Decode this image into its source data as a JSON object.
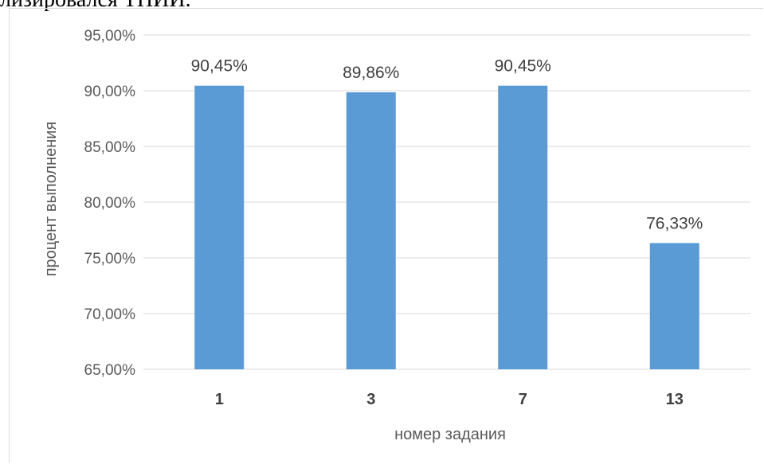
{
  "header_text": "лизировался ТНИИ.",
  "chart_data": {
    "type": "bar",
    "categories": [
      "1",
      "3",
      "7",
      "13"
    ],
    "values": [
      90.45,
      89.86,
      90.45,
      76.33
    ],
    "data_labels": [
      "90,45%",
      "89,86%",
      "90,45%",
      "76,33%"
    ],
    "title": "",
    "xlabel": "номер задания",
    "ylabel": "процент выполнения",
    "ylim": [
      65,
      95
    ],
    "yticks": [
      65,
      70,
      75,
      80,
      85,
      90,
      95
    ],
    "ytick_labels": [
      "65,00%",
      "70,00%",
      "75,00%",
      "80,00%",
      "85,00%",
      "90,00%",
      "95,00%"
    ],
    "grid": true,
    "legend": "none",
    "bar_color": "#5b9bd5",
    "grid_color": "#d9d9d9"
  }
}
